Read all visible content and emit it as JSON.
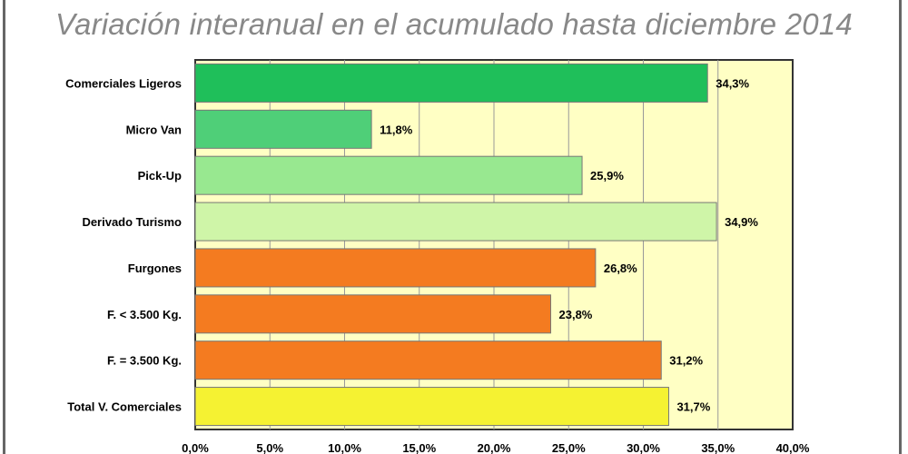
{
  "title": "Variación interanual en el acumulado hasta diciembre 2014",
  "chart_data": {
    "type": "bar",
    "orientation": "horizontal",
    "title": "Variación interanual en el acumulado hasta diciembre 2014",
    "categories": [
      "Comerciales Ligeros",
      "Micro Van",
      "Pick-Up",
      "Derivado Turismo",
      "Furgones",
      "F. < 3.500 Kg.",
      "F. = 3.500 Kg.",
      "Total V. Comerciales"
    ],
    "values": [
      34.3,
      11.8,
      25.9,
      34.9,
      26.8,
      23.8,
      31.2,
      31.7
    ],
    "labels": [
      "34,3%",
      "11,8%",
      "25,9%",
      "34,9%",
      "26,8%",
      "23,8%",
      "31,2%",
      "31,7%"
    ],
    "colors": [
      "#1fbf5a",
      "#4fcf78",
      "#98e890",
      "#cff5a8",
      "#f47b20",
      "#f47b20",
      "#f47b20",
      "#f5f232"
    ],
    "xlim": [
      0,
      40
    ],
    "ticks": [
      "0,0%",
      "5,0%",
      "10,0%",
      "15,0%",
      "20,0%",
      "25,0%",
      "30,0%",
      "35,0%",
      "40,0%"
    ],
    "grid": true
  }
}
